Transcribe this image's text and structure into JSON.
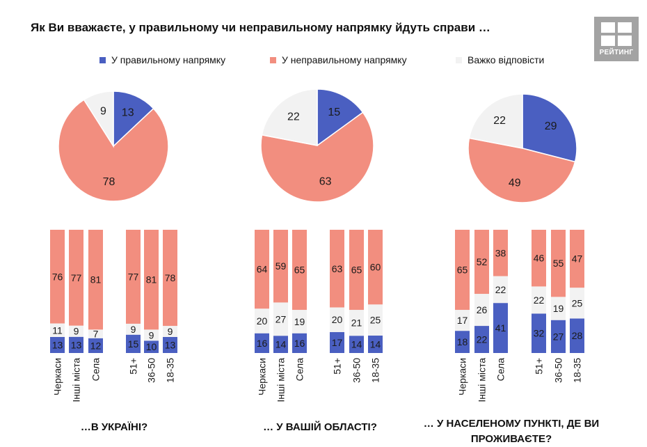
{
  "title": "Як Ви вважаєте, у правильному чи неправильному напрямку йдуть справи …",
  "logo": {
    "text": "РЕЙТИНГ",
    "icon": "rating-logo-icon",
    "color": "#a3a3a3"
  },
  "colors": {
    "right": "#4a5fc1",
    "wrong": "#f28e7f",
    "hard": "#f2f2f2"
  },
  "chart_data": [
    {
      "type": "pie",
      "caption": "…В УКРАЇНІ?",
      "legend": [
        "У правильному напрямку",
        "У неправильному напрямку",
        "Важко відповісти"
      ],
      "categories": [
        "У правильному напрямку",
        "У неправильному напрямку",
        "Важко відповісти"
      ],
      "values": [
        13,
        78,
        9
      ]
    },
    {
      "type": "bar",
      "stacked": true,
      "categories": [
        "Черкаси",
        "Інші міста",
        "Села",
        "51+",
        "36-50",
        "18-35"
      ],
      "series": [
        {
          "name": "У правильному напрямку",
          "values": [
            13,
            13,
            12,
            15,
            10,
            13
          ]
        },
        {
          "name": "Важко відповісти",
          "values": [
            11,
            9,
            7,
            9,
            9,
            9
          ]
        },
        {
          "name": "У неправильному напрямку",
          "values": [
            76,
            77,
            81,
            77,
            81,
            78
          ]
        }
      ]
    },
    {
      "type": "pie",
      "caption": "… У ВАШІЙ ОБЛАСТІ?",
      "categories": [
        "У правильному напрямку",
        "У неправильному напрямку",
        "Важко відповісти"
      ],
      "values": [
        15,
        63,
        22
      ]
    },
    {
      "type": "bar",
      "stacked": true,
      "categories": [
        "Черкаси",
        "Інші міста",
        "Села",
        "51+",
        "36-50",
        "18-35"
      ],
      "series": [
        {
          "name": "У правильному напрямку",
          "values": [
            16,
            14,
            16,
            17,
            14,
            14
          ]
        },
        {
          "name": "Важко відповісти",
          "values": [
            20,
            27,
            19,
            20,
            21,
            25
          ]
        },
        {
          "name": "У неправильному напрямку",
          "values": [
            64,
            59,
            65,
            63,
            65,
            60
          ]
        }
      ]
    },
    {
      "type": "pie",
      "caption": "… У НАСЕЛЕНОМУ ПУНКТІ, ДЕ ВИ ПРОЖИВАЄТЕ?",
      "categories": [
        "У правильному напрямку",
        "У неправильному напрямку",
        "Важко відповісти"
      ],
      "values": [
        29,
        49,
        22
      ]
    },
    {
      "type": "bar",
      "stacked": true,
      "categories": [
        "Черкаси",
        "Інші міста",
        "Села",
        "51+",
        "36-50",
        "18-35"
      ],
      "series": [
        {
          "name": "У правильному напрямку",
          "values": [
            18,
            22,
            41,
            32,
            27,
            28
          ]
        },
        {
          "name": "Важко відповісти",
          "values": [
            17,
            26,
            22,
            22,
            19,
            25
          ]
        },
        {
          "name": "У неправильному напрямку",
          "values": [
            65,
            52,
            38,
            46,
            55,
            47
          ]
        }
      ]
    }
  ]
}
